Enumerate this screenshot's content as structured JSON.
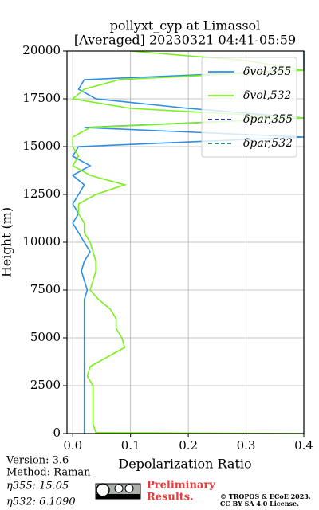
{
  "chart_data": {
    "type": "line",
    "title": [
      "pollyxt_cyp at Limassol",
      "[Averaged] 20230321 04:41-05:59"
    ],
    "x_label": "Depolarization Ratio",
    "y_label": "Height (m)",
    "heights": [
      0,
      50,
      500,
      1000,
      1500,
      2000,
      2500,
      3000,
      3500,
      4000,
      4500,
      5000,
      5500,
      6000,
      6500,
      7000,
      7500,
      8000,
      8500,
      9000,
      9500,
      10000,
      10500,
      11000,
      11500,
      12000,
      12500,
      13000,
      13500,
      14000,
      14500,
      15000,
      15500,
      16000,
      16500,
      17000,
      17500,
      18000,
      18500,
      19000,
      19500,
      20000
    ],
    "series": [
      {
        "name": "δvol,355",
        "color": "#2a8fe8",
        "linestyle": "solid",
        "values": [
          0.02,
          0.02,
          0.02,
          0.02,
          0.02,
          0.02,
          0.02,
          0.02,
          0.02,
          0.02,
          0.02,
          0.02,
          0.02,
          0.02,
          0.02,
          0.02,
          0.025,
          0.02,
          0.015,
          0.02,
          0.03,
          0.02,
          0.01,
          0.0,
          0.01,
          0.0,
          0.01,
          0.02,
          0.0,
          0.03,
          0.0,
          0.01,
          0.4,
          0.02,
          0.4,
          0.2,
          0.04,
          0.01,
          0.02,
          0.4,
          0.4,
          0.4
        ]
      },
      {
        "name": "δvol,532",
        "color": "#7cf01c",
        "linestyle": "solid",
        "values": [
          0.4,
          0.04,
          0.035,
          0.035,
          0.035,
          0.035,
          0.035,
          0.025,
          0.03,
          0.06,
          0.09,
          0.085,
          0.075,
          0.075,
          0.065,
          0.045,
          0.03,
          0.035,
          0.04,
          0.04,
          0.035,
          0.03,
          0.02,
          0.02,
          0.01,
          0.01,
          0.04,
          0.09,
          0.03,
          0.0,
          0.01,
          0.0,
          0.0,
          0.03,
          0.4,
          0.1,
          0.0,
          0.02,
          0.08,
          0.4,
          0.3,
          0.1
        ]
      },
      {
        "name": "δpar,355",
        "color": "#0a1aa8",
        "linestyle": "dashed"
      },
      {
        "name": "δpar,532",
        "color": "#138a5a",
        "linestyle": "dashed"
      }
    ],
    "xlim": [
      -0.01,
      0.4
    ],
    "xticks": [
      {
        "value": 0,
        "label": "0.0"
      },
      0.1,
      0.2,
      0.3,
      0.4
    ],
    "ylim": [
      0,
      20000
    ],
    "yticks": [
      0,
      2500,
      5000,
      7500,
      10000,
      12500,
      15000,
      17500,
      20000
    ],
    "grid": true,
    "legend": "upper right",
    "footer": {
      "version": "Version: 3.6",
      "method": "Method: Raman",
      "eta355": "η355:  15.05",
      "eta532": "η532: 6.1090",
      "preliminary": [
        "Preliminary",
        "Results."
      ],
      "license": [
        "© TROPOS & ECoE 2023.",
        "CC BY SA 4.0 License."
      ]
    }
  }
}
